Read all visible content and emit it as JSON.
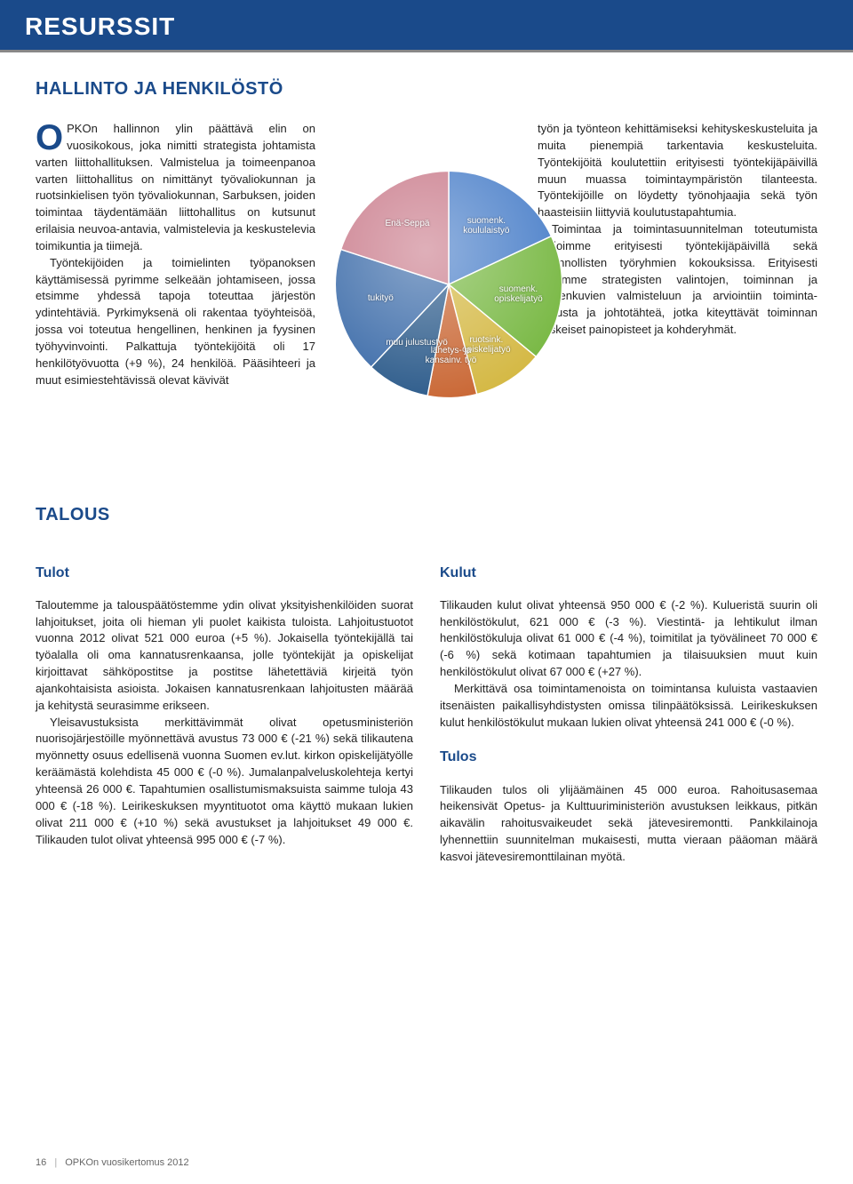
{
  "header": {
    "title": "RESURSSIT"
  },
  "section1": {
    "heading": "HALLINTO JA HENKILÖSTÖ",
    "left": {
      "dropcap": "O",
      "p1": "PKOn hallinnon ylin päättävä elin on vuosikokous, joka nimitti strategista johtamista varten liittohallituksen. Valmistelua ja toimeenpanoa varten liittohallitus on nimittänyt työvaliokunnan ja ruotsinkielisen työn työvaliokunnan, Sarbuksen, joiden toimintaa täydentämään liittohallitus on kutsunut erilaisia neuvoa-antavia, valmistelevia ja keskustelevia toimikuntia ja tiimejä.",
      "p2": "Työntekijöiden ja toimielinten työpanoksen käyttämisessä pyrimme selkeään johtamiseen, jossa etsimme yhdessä tapoja toteuttaa järjestön ydintehtäviä. Pyrkimyksenä oli rakentaa työyhteisöä, jossa voi toteutua hengellinen, henkinen ja fyysinen työhyvinvointi. Palkattuja työntekijöitä oli 17 henkilötyövuotta (+9 %), 24 henkilöä. Pääsihteeri ja muut esimiestehtävissä olevat kävivät"
    },
    "right": {
      "p1": "työn ja työnteon kehittämiseksi kehityskeskusteluita ja muita pienempiä tarkentavia keskusteluita. Työntekijöitä koulutettiin erityisesti työntekijäpäivillä muun muassa toimintaympäristön tilanteesta. Työntekijöille on löydetty työnohjaajia sekä työn haasteisiin liittyviä koulutustapahtumia.",
      "p2": "Toimintaa ja toimintasuunnitelman toteutumista arvioimme erityisesti työntekijäpäivillä sekä hallinnollisten työryhmien kokouksissa. Erityisesti käytimme strategisten valintojen, toiminnan ja toimenkuvien valmisteluun ja arviointiin toiminta-ajatusta ja johtotähteä, jotka kiteyttävät toiminnan keskeiset painopisteet ja kohderyhmät."
    }
  },
  "pie": {
    "type": "pie",
    "background_color": "#ffffff",
    "slices": [
      {
        "label": "suomenk. koululaistyö",
        "value": 18,
        "color": "#4a7fc9"
      },
      {
        "label": "suomenk. opiskelijatyö",
        "value": 18,
        "color": "#78b843"
      },
      {
        "label": "ruotsink. opiskelijatyö",
        "value": 10,
        "color": "#d4b843"
      },
      {
        "label": "lähetys- ja kansainv. työ",
        "value": 7,
        "color": "#c96633"
      },
      {
        "label": "muu julustustyö",
        "value": 9,
        "color": "#2b5a8a"
      },
      {
        "label": "tukityö",
        "value": 18,
        "color": "#3a6aa8"
      },
      {
        "label": "Enä-Seppä",
        "value": 20,
        "color": "#c97a8a"
      }
    ],
    "label_fontsize": 10,
    "label_color": "#ffffff"
  },
  "section2": {
    "heading": "TALOUS",
    "tulot": {
      "heading": "Tulot",
      "p1": "Taloutemme ja talouspäätöstemme ydin olivat yksityishenkilöiden suorat lahjoitukset, joita oli hieman yli puolet kaikista tuloista. Lahjoitustuotot vuonna 2012 olivat 521 000 euroa (+5 %). Jokaisella työntekijällä tai työalalla oli oma kannatusrenkaansa, jolle työntekijät ja opiskelijat kirjoittavat sähköpostitse ja postitse lähetettäviä kirjeitä työn ajankohtaisista asioista. Jokaisen kannatusrenkaan lahjoitusten määrää ja kehitystä seurasimme erikseen.",
      "p2": "Yleisavustuksista merkittävimmät olivat opetusministeriön nuorisojärjestöille myönnettävä avustus 73 000 € (-21 %) sekä tilikautena myönnetty osuus edellisenä vuonna Suomen ev.lut. kirkon opiskelijätyölle keräämästä kolehdista 45 000 € (-0 %). Jumalanpalveluskolehteja kertyi yhteensä 26 000 €. Tapahtumien osallistumismaksuista saimme tuloja 43 000 € (-18 %). Leirikeskuksen myyntituotot oma käyttö mukaan lukien olivat 211 000 € (+10 %) sekä avustukset ja lahjoitukset 49 000 €. Tilikauden tulot olivat yhteensä 995 000 € (-7 %)."
    },
    "kulut": {
      "heading": "Kulut",
      "p1": "Tilikauden kulut olivat yhteensä 950 000 € (-2 %). Kulueristä suurin oli henkilöstökulut, 621 000 € (-3 %). Viestintä- ja lehtikulut ilman henkilöstökuluja olivat 61 000 € (-4 %), toimitilat ja työvälineet 70 000 € (-6 %) sekä kotimaan tapahtumien ja tilaisuuksien muut kuin henkilöstökulut olivat 67 000 € (+27 %).",
      "p2": "Merkittävä osa toimintamenoista on toimintansa kuluista vastaavien itsenäisten paikallisyhdistysten omissa tilinpäätöksissä. Leirikeskuksen kulut henkilöstökulut mukaan lukien olivat yhteensä 241 000 € (-0 %)."
    },
    "tulos": {
      "heading": "Tulos",
      "p1": "Tilikauden tulos oli ylijäämäinen 45 000 euroa. Rahoitusasemaa heikensivät Opetus- ja Kulttuuriministeriön avustuksen leikkaus, pitkän aikavälin rahoitusvaikeudet sekä jätevesiremontti. Pankkilainoja lyhennettiin suunnitelman mukaisesti, mutta vieraan pääoman määrä kasvoi jätevesiremonttilainan myötä."
    }
  },
  "footer": {
    "page": "16",
    "title": "OPKOn vuosikertomus 2012"
  }
}
